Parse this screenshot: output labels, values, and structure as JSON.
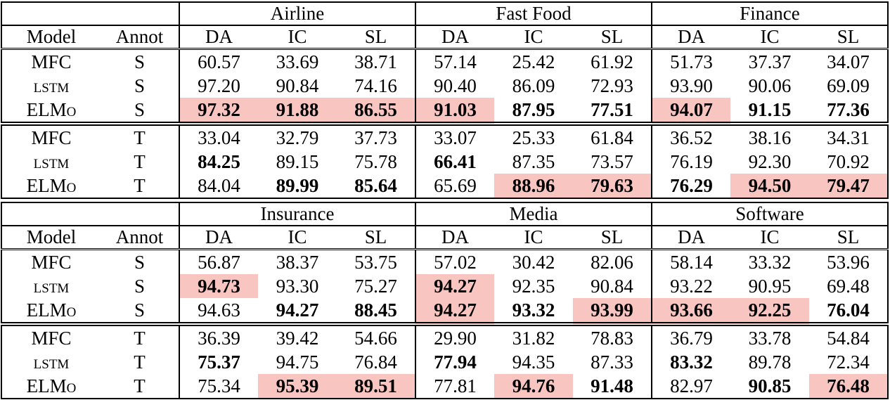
{
  "highlight_color": "#f9c5c0",
  "header": {
    "model": "Model",
    "annot": "Annot",
    "metrics": [
      "DA",
      "IC",
      "SL"
    ]
  },
  "tables": [
    {
      "domains": [
        "Airline",
        "Fast Food",
        "Finance"
      ],
      "rows": [
        {
          "model": "MFC",
          "annot": "S",
          "cells": [
            [
              "60.57",
              0,
              0
            ],
            [
              "33.69",
              0,
              0
            ],
            [
              "38.71",
              0,
              0
            ],
            [
              "57.14",
              0,
              0
            ],
            [
              "25.42",
              0,
              0
            ],
            [
              "61.92",
              0,
              0
            ],
            [
              "51.73",
              0,
              0
            ],
            [
              "37.37",
              0,
              0
            ],
            [
              "34.07",
              0,
              0
            ]
          ]
        },
        {
          "model": "lstm",
          "annot": "S",
          "cells": [
            [
              "97.20",
              0,
              0
            ],
            [
              "90.84",
              0,
              0
            ],
            [
              "74.16",
              0,
              0
            ],
            [
              "90.40",
              0,
              0
            ],
            [
              "86.09",
              0,
              0
            ],
            [
              "72.93",
              0,
              0
            ],
            [
              "93.90",
              0,
              0
            ],
            [
              "90.06",
              0,
              0
            ],
            [
              "69.09",
              0,
              0
            ]
          ]
        },
        {
          "model": "ELMo",
          "annot": "S",
          "cells": [
            [
              "97.32",
              1,
              1
            ],
            [
              "91.88",
              1,
              1
            ],
            [
              "86.55",
              1,
              1
            ],
            [
              "91.03",
              1,
              1
            ],
            [
              "87.95",
              1,
              0
            ],
            [
              "77.51",
              1,
              0
            ],
            [
              "94.07",
              1,
              1
            ],
            [
              "91.15",
              1,
              0
            ],
            [
              "77.36",
              1,
              0
            ]
          ]
        },
        {
          "model": "MFC",
          "annot": "T",
          "group_start": true,
          "cells": [
            [
              "33.04",
              0,
              0
            ],
            [
              "32.79",
              0,
              0
            ],
            [
              "37.73",
              0,
              0
            ],
            [
              "33.07",
              0,
              0
            ],
            [
              "25.33",
              0,
              0
            ],
            [
              "61.84",
              0,
              0
            ],
            [
              "36.52",
              0,
              0
            ],
            [
              "38.16",
              0,
              0
            ],
            [
              "34.31",
              0,
              0
            ]
          ]
        },
        {
          "model": "lstm",
          "annot": "T",
          "cells": [
            [
              "84.25",
              1,
              0
            ],
            [
              "89.15",
              0,
              0
            ],
            [
              "75.78",
              0,
              0
            ],
            [
              "66.41",
              1,
              0
            ],
            [
              "87.35",
              0,
              0
            ],
            [
              "73.57",
              0,
              0
            ],
            [
              "76.19",
              0,
              0
            ],
            [
              "92.30",
              0,
              0
            ],
            [
              "70.92",
              0,
              0
            ]
          ]
        },
        {
          "model": "ELMo",
          "annot": "T",
          "cells": [
            [
              "84.04",
              0,
              0
            ],
            [
              "89.99",
              1,
              0
            ],
            [
              "85.64",
              1,
              0
            ],
            [
              "65.69",
              0,
              0
            ],
            [
              "88.96",
              1,
              1
            ],
            [
              "79.63",
              1,
              1
            ],
            [
              "76.29",
              1,
              0
            ],
            [
              "94.50",
              1,
              1
            ],
            [
              "79.47",
              1,
              1
            ]
          ]
        }
      ]
    },
    {
      "domains": [
        "Insurance",
        "Media",
        "Software"
      ],
      "rows": [
        {
          "model": "MFC",
          "annot": "S",
          "cells": [
            [
              "56.87",
              0,
              0
            ],
            [
              "38.37",
              0,
              0
            ],
            [
              "53.75",
              0,
              0
            ],
            [
              "57.02",
              0,
              0
            ],
            [
              "30.42",
              0,
              0
            ],
            [
              "82.06",
              0,
              0
            ],
            [
              "58.14",
              0,
              0
            ],
            [
              "33.32",
              0,
              0
            ],
            [
              "53.96",
              0,
              0
            ]
          ]
        },
        {
          "model": "lstm",
          "annot": "S",
          "cells": [
            [
              "94.73",
              1,
              1
            ],
            [
              "93.30",
              0,
              0
            ],
            [
              "75.27",
              0,
              0
            ],
            [
              "94.27",
              1,
              1
            ],
            [
              "92.35",
              0,
              0
            ],
            [
              "90.84",
              0,
              0
            ],
            [
              "93.22",
              0,
              0
            ],
            [
              "90.95",
              0,
              0
            ],
            [
              "69.48",
              0,
              0
            ]
          ]
        },
        {
          "model": "ELMo",
          "annot": "S",
          "cells": [
            [
              "94.63",
              0,
              0
            ],
            [
              "94.27",
              1,
              0
            ],
            [
              "88.45",
              1,
              0
            ],
            [
              "94.27",
              1,
              1
            ],
            [
              "93.32",
              1,
              0
            ],
            [
              "93.99",
              1,
              1
            ],
            [
              "93.66",
              1,
              1
            ],
            [
              "92.25",
              1,
              1
            ],
            [
              "76.04",
              1,
              0
            ]
          ]
        },
        {
          "model": "MFC",
          "annot": "T",
          "group_start": true,
          "cells": [
            [
              "36.39",
              0,
              0
            ],
            [
              "39.42",
              0,
              0
            ],
            [
              "54.66",
              0,
              0
            ],
            [
              "29.90",
              0,
              0
            ],
            [
              "31.82",
              0,
              0
            ],
            [
              "78.83",
              0,
              0
            ],
            [
              "36.79",
              0,
              0
            ],
            [
              "33.78",
              0,
              0
            ],
            [
              "54.84",
              0,
              0
            ]
          ]
        },
        {
          "model": "lstm",
          "annot": "T",
          "cells": [
            [
              "75.37",
              1,
              0
            ],
            [
              "94.75",
              0,
              0
            ],
            [
              "76.84",
              0,
              0
            ],
            [
              "77.94",
              1,
              0
            ],
            [
              "94.35",
              0,
              0
            ],
            [
              "87.33",
              0,
              0
            ],
            [
              "83.32",
              1,
              0
            ],
            [
              "89.78",
              0,
              0
            ],
            [
              "72.34",
              0,
              0
            ]
          ]
        },
        {
          "model": "ELMo",
          "annot": "T",
          "cells": [
            [
              "75.34",
              0,
              0
            ],
            [
              "95.39",
              1,
              1
            ],
            [
              "89.51",
              1,
              1
            ],
            [
              "77.81",
              0,
              0
            ],
            [
              "94.76",
              1,
              1
            ],
            [
              "91.48",
              1,
              0
            ],
            [
              "82.97",
              0,
              0
            ],
            [
              "90.85",
              1,
              0
            ],
            [
              "76.48",
              1,
              1
            ]
          ]
        }
      ]
    }
  ]
}
